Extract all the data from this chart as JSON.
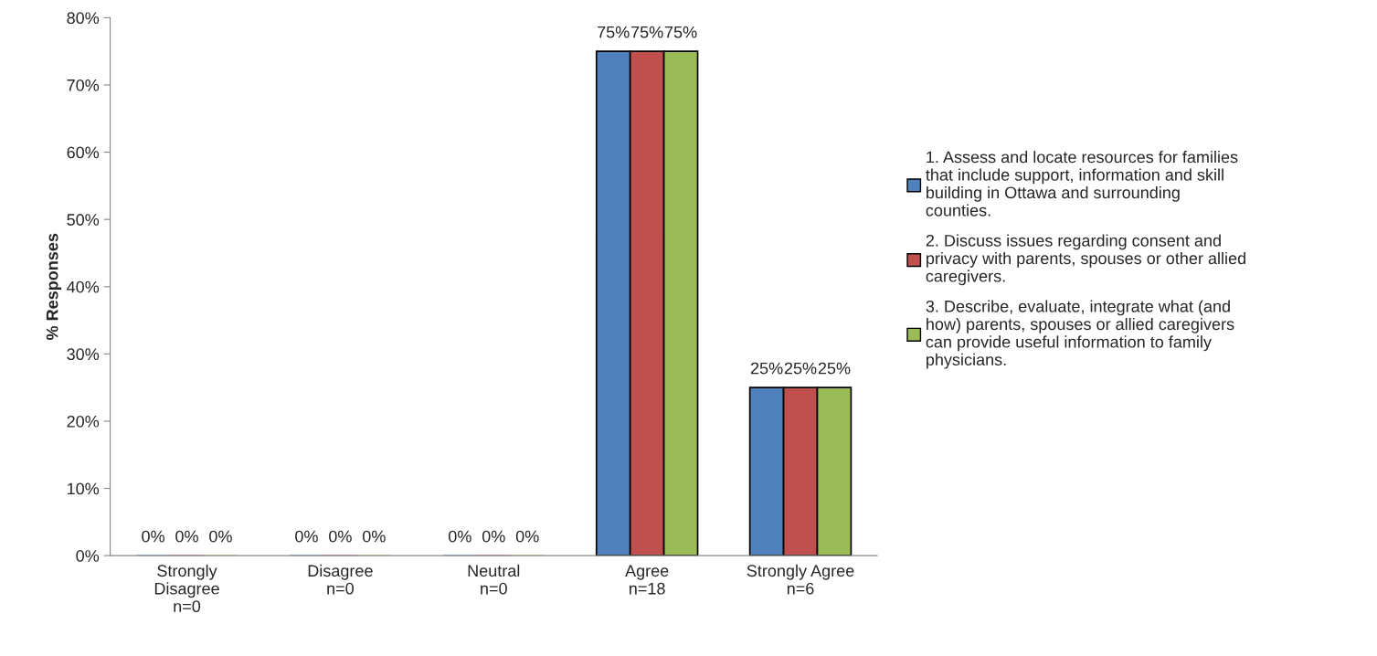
{
  "chart_data": {
    "type": "bar",
    "ylabel": "% Responses",
    "categories": [
      "Strongly\nDisagree\nn=0",
      "Disagree\nn=0",
      "Neutral\nn=0",
      "Agree\nn=18",
      "Strongly Agree\nn=6"
    ],
    "series": [
      {
        "name": "1. Assess and locate resources for families\nthat include support, information and skill\nbuilding in Ottawa and surrounding\ncounties.",
        "color": "#4f81bd",
        "values": [
          0,
          0,
          0,
          75,
          25
        ],
        "value_labels": [
          "0%",
          "0%",
          "0%",
          "75%",
          "25%"
        ]
      },
      {
        "name": "2. Discuss issues regarding consent and\nprivacy with parents, spouses or other allied\ncaregivers.",
        "color": "#c0504d",
        "values": [
          0,
          0,
          0,
          75,
          25
        ],
        "value_labels": [
          "0%",
          "0%",
          "0%",
          "75%",
          "25%"
        ]
      },
      {
        "name": "3. Describe, evaluate, integrate what (and\nhow) parents, spouses or allied caregivers\ncan provide useful information to family\nphysicians.",
        "color": "#9bbb59",
        "values": [
          0,
          0,
          0,
          75,
          25
        ],
        "value_labels": [
          "0%",
          "0%",
          "0%",
          "75%",
          "25%"
        ]
      }
    ],
    "ylim": [
      0,
      80
    ],
    "yticks": [
      {
        "value": 0,
        "label": "0%"
      },
      {
        "value": 10,
        "label": "10%"
      },
      {
        "value": 20,
        "label": "20%"
      },
      {
        "value": 30,
        "label": "30%"
      },
      {
        "value": 40,
        "label": "40%"
      },
      {
        "value": 50,
        "label": "50%"
      },
      {
        "value": 60,
        "label": "60%"
      },
      {
        "value": 70,
        "label": "70%"
      },
      {
        "value": 80,
        "label": "80%"
      }
    ],
    "grid": false,
    "legend": "right"
  }
}
